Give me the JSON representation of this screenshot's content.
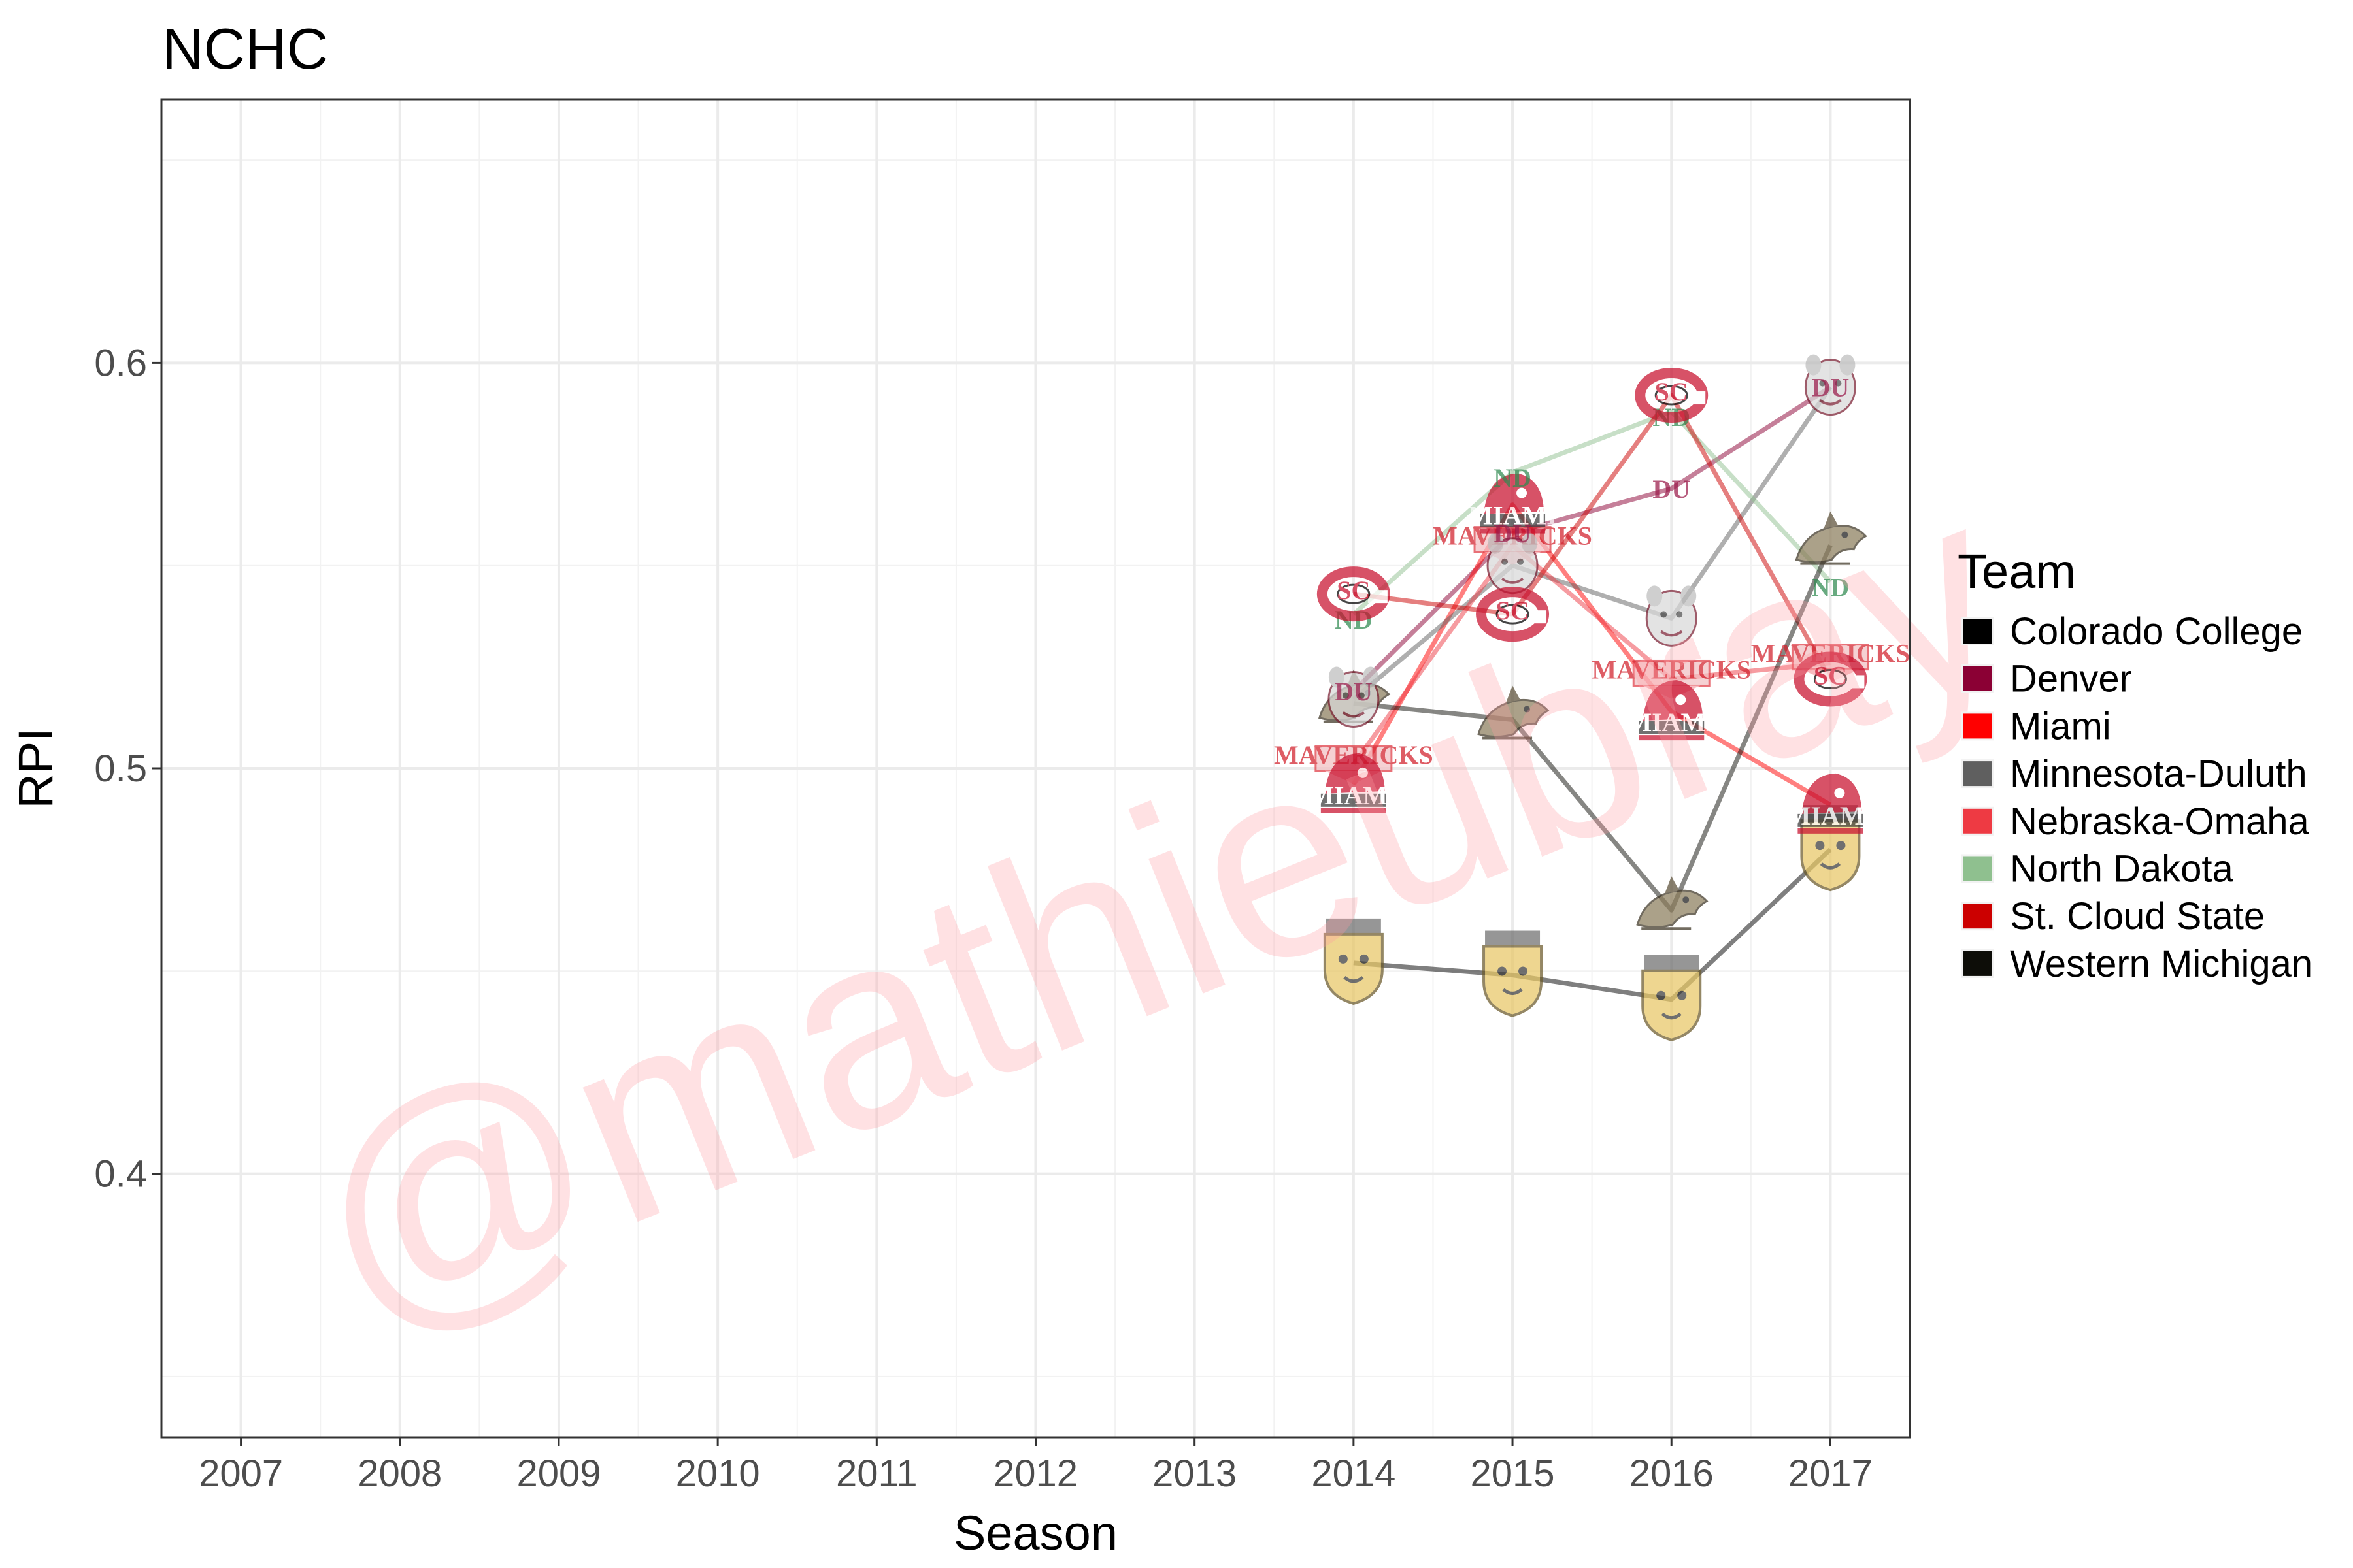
{
  "chart_data": {
    "type": "line",
    "title": "NCHC",
    "xlabel": "Season",
    "ylabel": "RPI",
    "xlim": [
      2006.5,
      2017.5
    ],
    "ylim": [
      0.335,
      0.665
    ],
    "x_ticks": [
      2007,
      2008,
      2009,
      2010,
      2011,
      2012,
      2013,
      2014,
      2015,
      2016,
      2017
    ],
    "y_ticks": [
      0.4,
      0.5,
      0.6
    ],
    "grid": true,
    "legend": {
      "title": "Team",
      "position": "right"
    },
    "series": [
      {
        "name": "Colorado College",
        "color": "#000000",
        "logo": "tiger-logo-icon",
        "points": [
          [
            2014,
            0.452
          ],
          [
            2015,
            0.449
          ],
          [
            2016,
            0.443
          ],
          [
            2017,
            0.48
          ]
        ]
      },
      {
        "name": "Denver",
        "color": "#8b0034",
        "logo": "du-logo-icon",
        "points": [
          [
            2014,
            0.519
          ],
          [
            2015,
            0.558
          ],
          [
            2016,
            0.569
          ],
          [
            2017,
            0.594
          ]
        ]
      },
      {
        "name": "Miami",
        "color": "#ff0000",
        "logo": "miami-logo-icon",
        "points": [
          [
            2014,
            0.496
          ],
          [
            2015,
            0.565
          ],
          [
            2016,
            0.514
          ],
          [
            2017,
            0.491
          ]
        ]
      },
      {
        "name": "Minnesota-Duluth",
        "color": "#5f5f5f",
        "logo": "bulldog-logo-icon",
        "points": [
          [
            2014,
            0.517
          ],
          [
            2015,
            0.55
          ],
          [
            2016,
            0.537
          ],
          [
            2017,
            0.594
          ]
        ]
      },
      {
        "name": "Nebraska-Omaha",
        "color": "#ee3a43",
        "logo": "mavericks-logo-icon",
        "points": [
          [
            2014,
            0.501
          ],
          [
            2015,
            0.555
          ],
          [
            2016,
            0.522
          ],
          [
            2017,
            0.526
          ]
        ]
      },
      {
        "name": "North Dakota",
        "color": "#8fc08f",
        "logo": "nd-logo-icon",
        "points": [
          [
            2014,
            0.538
          ],
          [
            2015,
            0.573
          ],
          [
            2016,
            0.588
          ],
          [
            2017,
            0.546
          ]
        ]
      },
      {
        "name": "St. Cloud State",
        "color": "#cc0000",
        "logo": "scsu-logo-icon",
        "points": [
          [
            2014,
            0.543
          ],
          [
            2015,
            0.538
          ],
          [
            2016,
            0.592
          ],
          [
            2017,
            0.522
          ]
        ]
      },
      {
        "name": "Western Michigan",
        "color": "#0d0d08",
        "logo": "bronco-logo-icon",
        "points": [
          [
            2014,
            0.516
          ],
          [
            2015,
            0.512
          ],
          [
            2016,
            0.465
          ],
          [
            2017,
            0.555
          ]
        ]
      }
    ],
    "logo_text": {
      "denver": "DU",
      "miami": "MIAMI",
      "omaha": "MAVERICKS",
      "north_dakota": "ND",
      "st_cloud": "SC"
    },
    "watermark": "@mathieubray"
  }
}
